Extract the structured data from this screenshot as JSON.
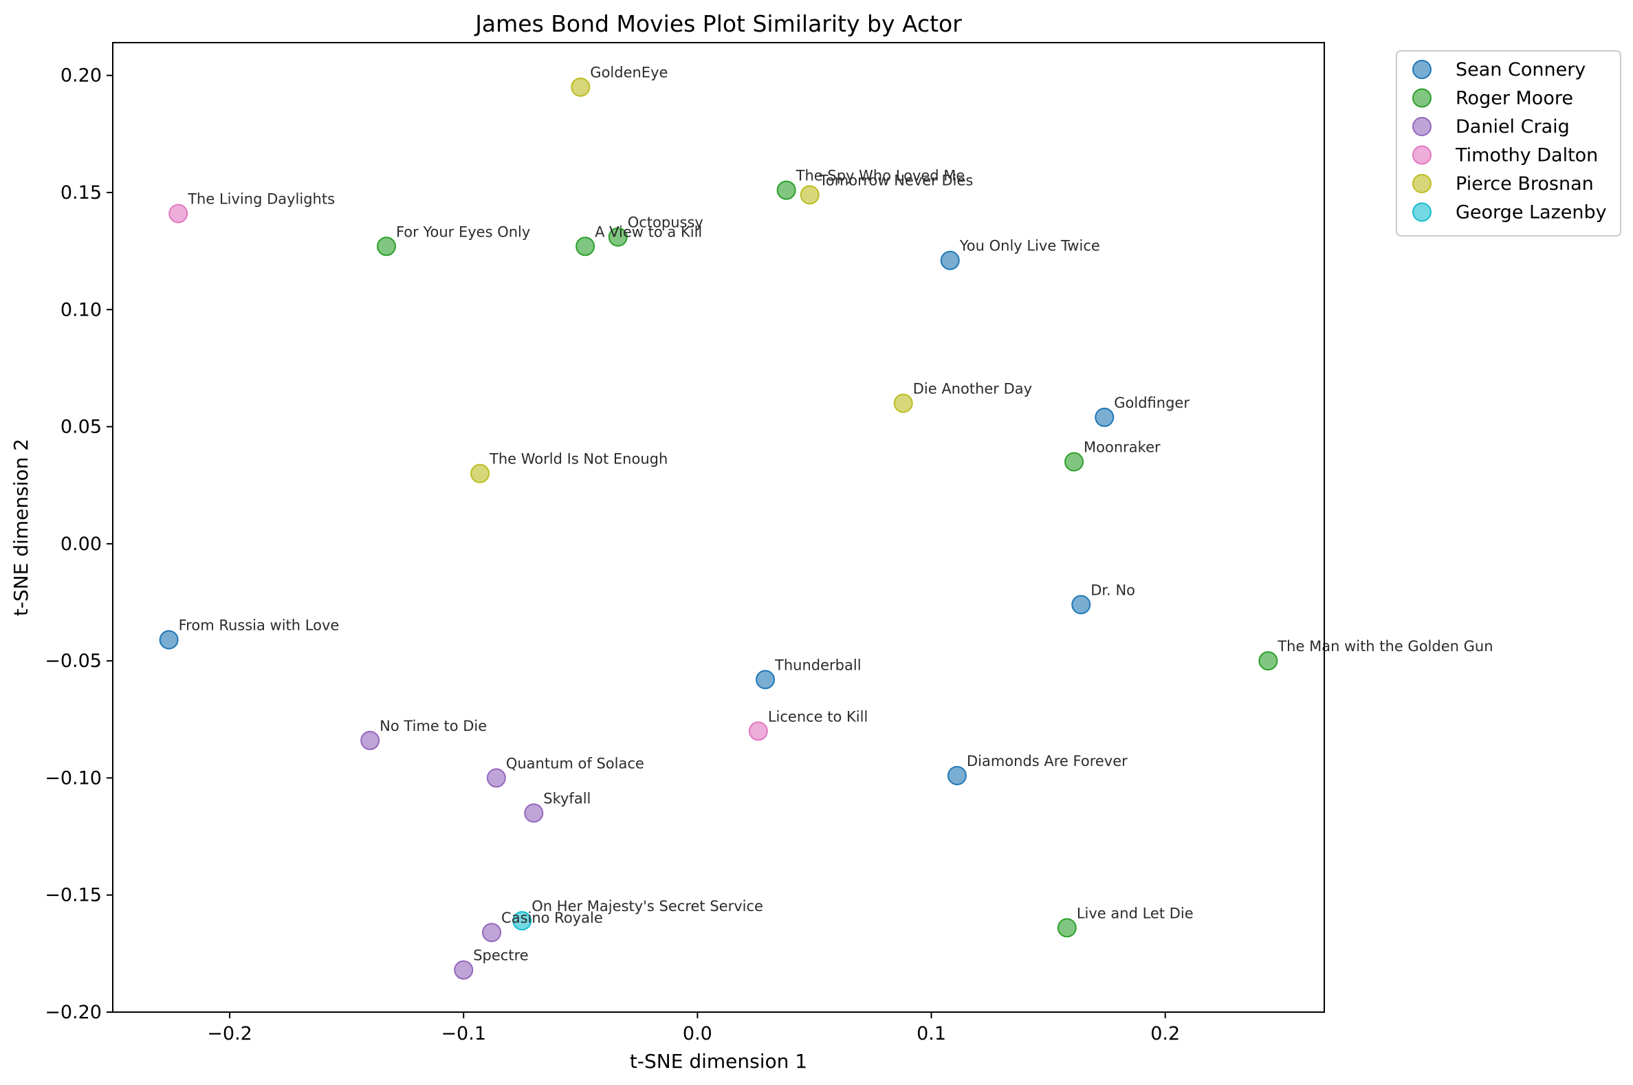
{
  "chart_data": {
    "type": "scatter",
    "title": "James Bond Movies Plot Similarity by Actor",
    "xlabel": "t-SNE dimension 1",
    "ylabel": "t-SNE dimension 2",
    "xlim": [
      -0.25,
      0.268
    ],
    "ylim": [
      -0.2,
      0.214
    ],
    "xticks": [
      -0.2,
      -0.1,
      0.0,
      0.1,
      0.2
    ],
    "xtick_labels": [
      "−0.2",
      "−0.1",
      "0.0",
      "0.1",
      "0.2"
    ],
    "yticks": [
      -0.2,
      -0.15,
      -0.1,
      -0.05,
      0.0,
      0.05,
      0.1,
      0.15,
      0.2
    ],
    "ytick_labels": [
      "−0.20",
      "−0.15",
      "−0.10",
      "−0.05",
      "0.00",
      "0.05",
      "0.10",
      "0.15",
      "0.20"
    ],
    "grid": false,
    "legend_position": "outside top-right",
    "series": [
      {
        "name": "Sean Connery",
        "color": "#1f77b4",
        "points": [
          {
            "label": "You Only Live Twice",
            "x": 0.108,
            "y": 0.121
          },
          {
            "label": "Goldfinger",
            "x": 0.174,
            "y": 0.054
          },
          {
            "label": "Dr. No",
            "x": 0.164,
            "y": -0.026
          },
          {
            "label": "From Russia with Love",
            "x": -0.226,
            "y": -0.041
          },
          {
            "label": "Thunderball",
            "x": 0.029,
            "y": -0.058
          },
          {
            "label": "Diamonds Are Forever",
            "x": 0.111,
            "y": -0.099
          }
        ]
      },
      {
        "name": "Roger Moore",
        "color": "#2ca02c",
        "points": [
          {
            "label": "The Spy Who Loved Me",
            "x": 0.038,
            "y": 0.151
          },
          {
            "label": "For Your Eyes Only",
            "x": -0.133,
            "y": 0.127
          },
          {
            "label": "A View to a Kill",
            "x": -0.048,
            "y": 0.127
          },
          {
            "label": "Octopussy",
            "x": -0.034,
            "y": 0.131
          },
          {
            "label": "Moonraker",
            "x": 0.161,
            "y": 0.035
          },
          {
            "label": "The Man with the Golden Gun",
            "x": 0.244,
            "y": -0.05
          },
          {
            "label": "Live and Let Die",
            "x": 0.158,
            "y": -0.164
          }
        ]
      },
      {
        "name": "Daniel Craig",
        "color": "#9467bd",
        "points": [
          {
            "label": "No Time to Die",
            "x": -0.14,
            "y": -0.084
          },
          {
            "label": "Quantum of Solace",
            "x": -0.086,
            "y": -0.1
          },
          {
            "label": "Skyfall",
            "x": -0.07,
            "y": -0.115
          },
          {
            "label": "Casino Royale",
            "x": -0.088,
            "y": -0.166
          },
          {
            "label": "Spectre",
            "x": -0.1,
            "y": -0.182
          }
        ]
      },
      {
        "name": "Timothy Dalton",
        "color": "#e377c2",
        "points": [
          {
            "label": "The Living Daylights",
            "x": -0.222,
            "y": 0.141
          },
          {
            "label": "Licence to Kill",
            "x": 0.026,
            "y": -0.08
          }
        ]
      },
      {
        "name": "Pierce Brosnan",
        "color": "#bcbd22",
        "points": [
          {
            "label": "GoldenEye",
            "x": -0.05,
            "y": 0.195
          },
          {
            "label": "Tomorrow Never Dies",
            "x": 0.048,
            "y": 0.149
          },
          {
            "label": "Die Another Day",
            "x": 0.088,
            "y": 0.06
          },
          {
            "label": "The World Is Not Enough",
            "x": -0.093,
            "y": 0.03
          }
        ]
      },
      {
        "name": "George Lazenby",
        "color": "#17becf",
        "points": [
          {
            "label": "On Her Majesty's Secret Service",
            "x": -0.075,
            "y": -0.161
          }
        ]
      }
    ]
  }
}
